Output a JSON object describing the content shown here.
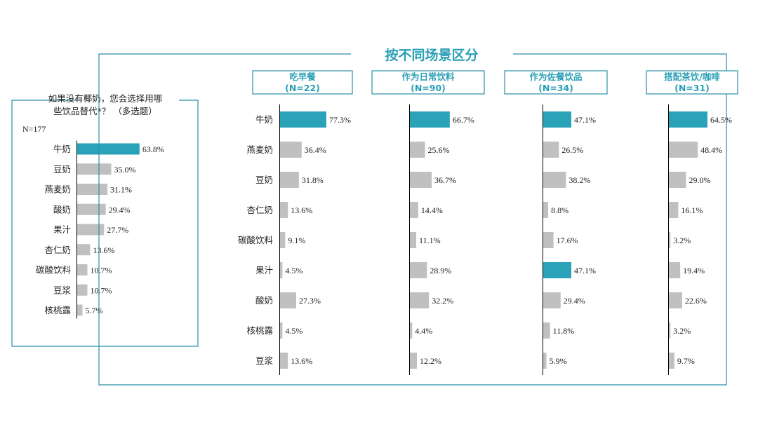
{
  "colors": {
    "frame": "#2a8fa6",
    "highlight": "#2aa3b8",
    "gray_bar": "#c0c0c0",
    "axis": "#000000",
    "title": "#2a9fb5"
  },
  "chart_data": [
    {
      "type": "bar",
      "orientation": "horizontal",
      "title": "如果没有椰奶，您会选择用哪些饮品替代*？（多选题）",
      "title_lines": [
        "如果没有椰奶，您会选择用哪",
        "些饮品替代*？ （多选题）"
      ],
      "sample": "N=177",
      "categories": [
        "牛奶",
        "豆奶",
        "燕麦奶",
        "酸奶",
        "果汁",
        "杏仁奶",
        "碳酸饮料",
        "豆浆",
        "核桃露"
      ],
      "values": [
        63.8,
        35.0,
        31.1,
        29.4,
        27.7,
        13.6,
        10.7,
        10.7,
        5.7
      ],
      "labels": [
        "63.8%",
        "35.0%",
        "31.1%",
        "29.4%",
        "27.7%",
        "13.6%",
        "10.7%",
        "10.7%",
        "5.7%"
      ],
      "highlight": [
        0
      ],
      "xlim": [
        0,
        100
      ]
    },
    {
      "type": "bar",
      "orientation": "horizontal",
      "title": "按不同场景区分",
      "categories": [
        "牛奶",
        "燕麦奶",
        "豆奶",
        "杏仁奶",
        "碳酸饮料",
        "果汁",
        "酸奶",
        "核桃露",
        "豆浆"
      ],
      "xlim": [
        0,
        100
      ],
      "panels": [
        {
          "name": "吃早餐",
          "n": "(N=22)",
          "values": [
            77.3,
            36.4,
            31.8,
            13.6,
            9.1,
            4.5,
            27.3,
            4.5,
            13.6
          ],
          "labels": [
            "77.3%",
            "36.4%",
            "31.8%",
            "13.6%",
            "9.1%",
            "4.5%",
            "27.3%",
            "4.5%",
            "13.6%"
          ],
          "highlight": [
            0
          ]
        },
        {
          "name": "作为日常饮料",
          "n": "(N=90)",
          "values": [
            66.7,
            25.6,
            36.7,
            14.4,
            11.1,
            28.9,
            32.2,
            4.4,
            12.2
          ],
          "labels": [
            "66.7%",
            "25.6%",
            "36.7%",
            "14.4%",
            "11.1%",
            "28.9%",
            "32.2%",
            "4.4%",
            "12.2%"
          ],
          "highlight": [
            0
          ]
        },
        {
          "name": "作为佐餐饮品",
          "n": "(N=34)",
          "values": [
            47.1,
            26.5,
            38.2,
            8.8,
            17.6,
            47.1,
            29.4,
            11.8,
            5.9
          ],
          "labels": [
            "47.1%",
            "26.5%",
            "38.2%",
            "8.8%",
            "17.6%",
            "47.1%",
            "29.4%",
            "11.8%",
            "5.9%"
          ],
          "highlight": [
            0,
            5
          ]
        },
        {
          "name": "搭配茶饮/咖啡",
          "n": "(N=31)",
          "values": [
            64.5,
            48.4,
            29.0,
            16.1,
            3.2,
            19.4,
            22.6,
            3.2,
            9.7
          ],
          "labels": [
            "64.5%",
            "48.4%",
            "29.0%",
            "16.1%",
            "3.2%",
            "19.4%",
            "22.6%",
            "3.2%",
            "9.7%"
          ],
          "highlight": [
            0
          ]
        }
      ]
    }
  ]
}
